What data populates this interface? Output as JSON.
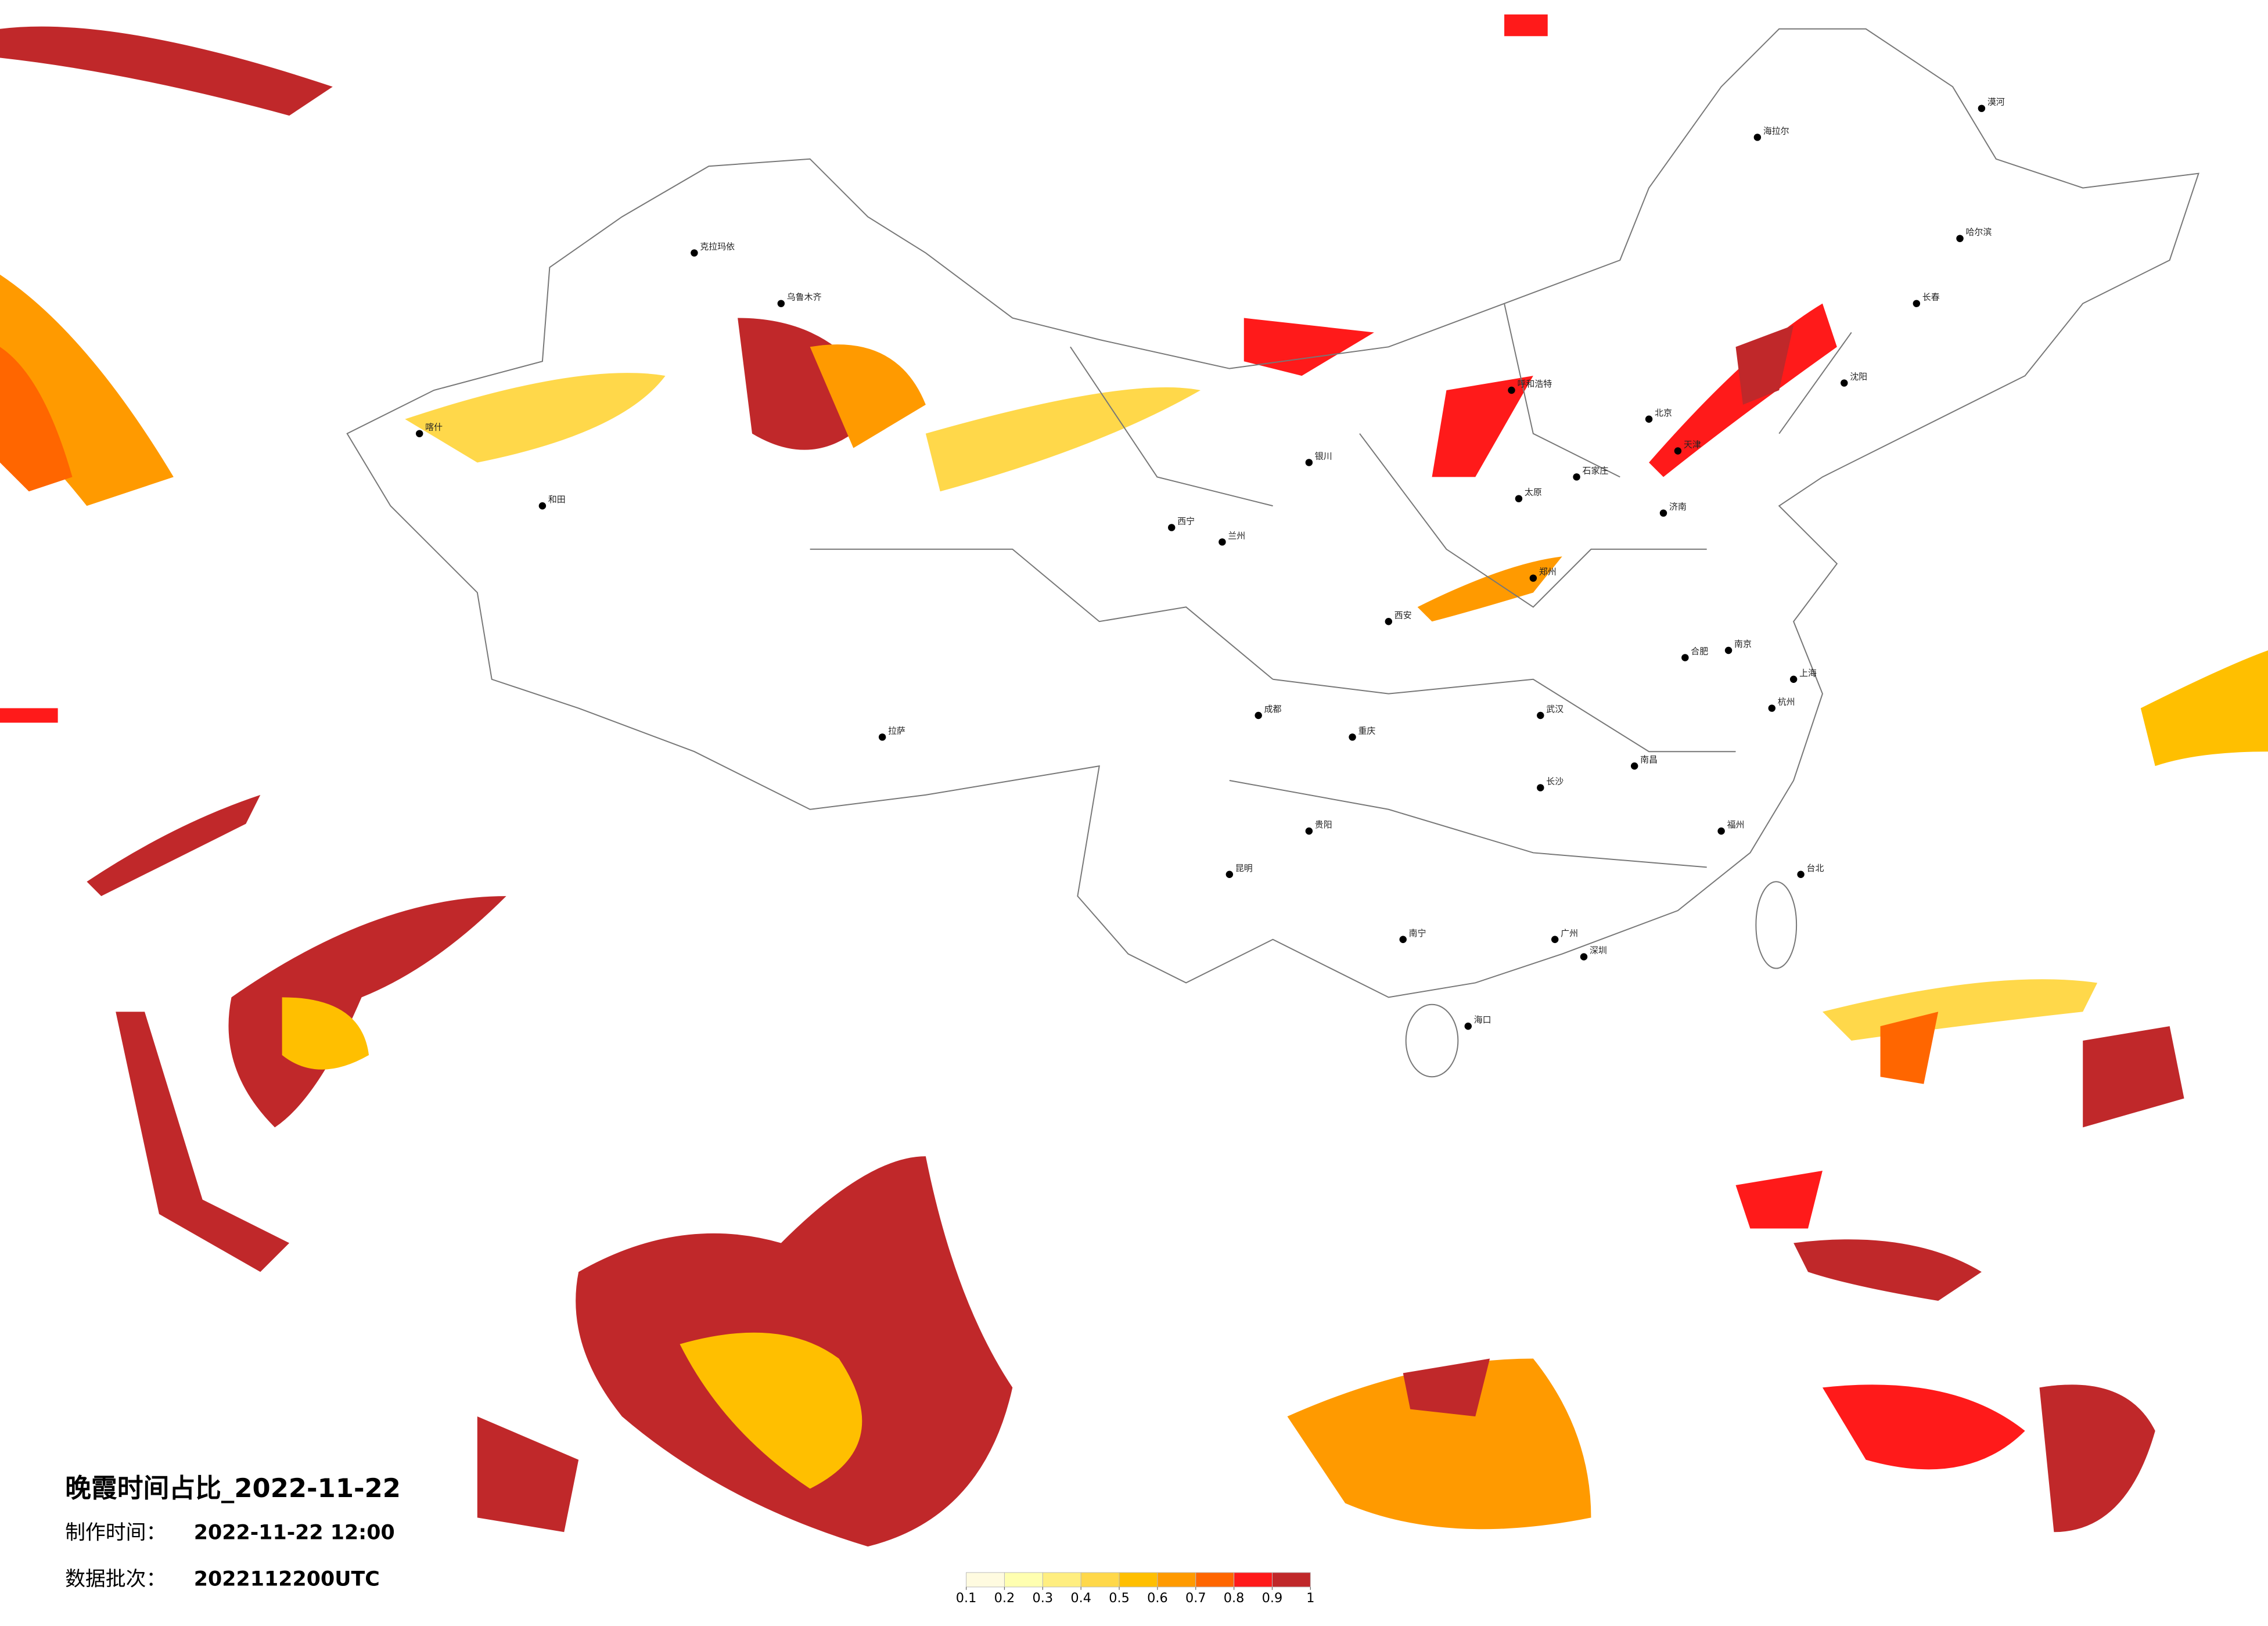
{
  "title": "晚霞时间占比_2022-11-22",
  "made_time": {
    "label": "制作时间：",
    "value": "2022-11-22 12:00"
  },
  "batch": {
    "label": "数据批次：",
    "value": "2022112200UTC"
  },
  "legend": {
    "colors": [
      "#fffbe0",
      "#ffffb0",
      "#ffee80",
      "#ffd84a",
      "#ffbf00",
      "#ff9a00",
      "#ff6600",
      "#ff1a1a",
      "#c0282a"
    ],
    "ticks": [
      0.1,
      0.2,
      0.3,
      0.4,
      0.5,
      0.6,
      0.7,
      0.8,
      0.9,
      1
    ]
  },
  "cities": [
    "北京",
    "天津",
    "上海",
    "广州",
    "深圳",
    "重庆",
    "成都",
    "武汉",
    "西安",
    "郑州",
    "哈尔滨",
    "长春",
    "沈阳",
    "乌鲁木齐",
    "拉萨",
    "昆明",
    "南宁",
    "贵阳",
    "兰州",
    "西宁",
    "银川",
    "呼和浩特",
    "太原",
    "石家庄",
    "济南",
    "南京",
    "杭州",
    "福州",
    "南昌",
    "长沙",
    "合肥",
    "海口",
    "台北",
    "喀什",
    "和田",
    "克拉玛依",
    "海拉尔",
    "漠河"
  ]
}
